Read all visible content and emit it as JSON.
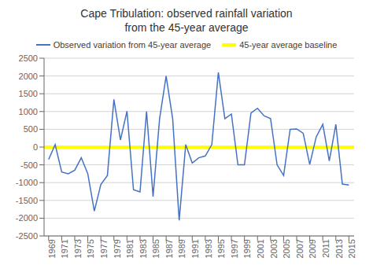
{
  "chart_data": {
    "type": "line",
    "title": "Cape Tribulation: observed rainfall variation\nfrom the 45-year average",
    "x": [
      1969,
      1970,
      1971,
      1972,
      1973,
      1974,
      1975,
      1976,
      1977,
      1978,
      1979,
      1980,
      1981,
      1982,
      1983,
      1984,
      1985,
      1986,
      1987,
      1988,
      1989,
      1990,
      1991,
      1992,
      1993,
      1994,
      1995,
      1996,
      1997,
      1998,
      1999,
      2000,
      2001,
      2002,
      2003,
      2004,
      2005,
      2006,
      2007,
      2008,
      2009,
      2010,
      2011,
      2012,
      2013,
      2014,
      2015
    ],
    "series": [
      {
        "name": "Observed variation from 45-year average",
        "color": "#4472C4",
        "values": [
          -350,
          70,
          -700,
          -750,
          -650,
          -300,
          -750,
          -1800,
          -1050,
          -800,
          1340,
          200,
          1010,
          -1200,
          -1260,
          1000,
          -1390,
          800,
          2000,
          800,
          -2060,
          70,
          -450,
          -300,
          -250,
          70,
          2100,
          800,
          930,
          -500,
          -500,
          960,
          1090,
          880,
          800,
          -500,
          -800,
          500,
          510,
          390,
          -490,
          290,
          640,
          -390,
          640,
          -1040,
          -1070
        ]
      },
      {
        "name": "45-year average baseline",
        "color": "#FFFF00",
        "type": "hline",
        "y": 0
      }
    ],
    "xlim": [
      1968.3,
      2015.8
    ],
    "xticks": [
      1969,
      1971,
      1973,
      1975,
      1977,
      1979,
      1981,
      1983,
      1985,
      1987,
      1989,
      1991,
      1993,
      1995,
      1997,
      1999,
      2001,
      2003,
      2005,
      2007,
      2009,
      2011,
      2013,
      2015
    ],
    "ylim": [
      -2500,
      2500
    ],
    "yticks": [
      -2500,
      -2000,
      -1500,
      -1000,
      -500,
      0,
      500,
      1000,
      1500,
      2000,
      2500
    ],
    "grid": "y",
    "legend": "top"
  }
}
